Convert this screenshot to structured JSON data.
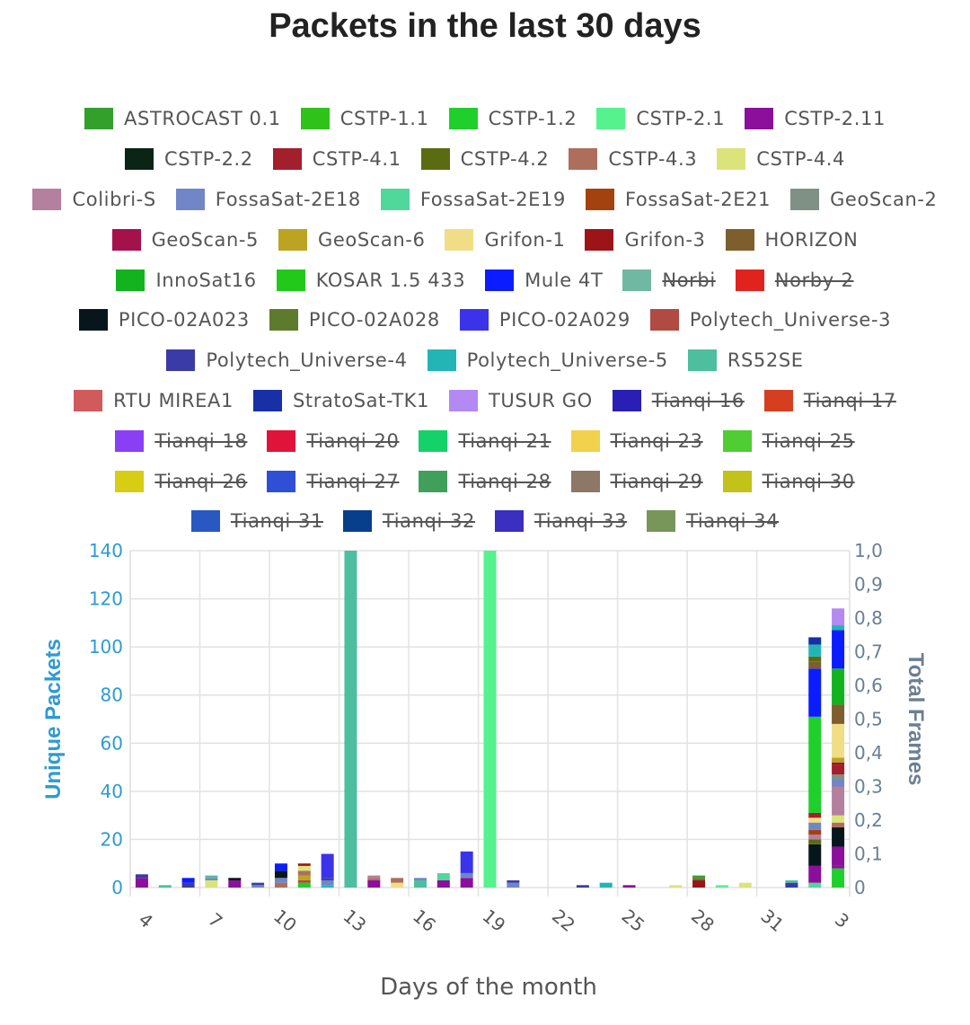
{
  "chart_data": {
    "type": "bar",
    "stacked": true,
    "title": "Packets in the last 30 days",
    "xlabel": "Days of the month",
    "ylabel": "Unique Packets",
    "y2label": "Total Frames",
    "ylim": [
      0,
      140
    ],
    "y2lim": [
      0,
      1.0
    ],
    "yticks": [
      "0",
      "20",
      "40",
      "60",
      "80",
      "100",
      "120",
      "140"
    ],
    "y2ticks": [
      "0",
      "0,1",
      "0,2",
      "0,3",
      "0,4",
      "0,5",
      "0,6",
      "0,7",
      "0,8",
      "0,9",
      "1,0"
    ],
    "categories": [
      "4",
      "5",
      "6",
      "7",
      "8",
      "9",
      "10",
      "11",
      "12",
      "13",
      "14",
      "15",
      "16",
      "17",
      "18",
      "19",
      "20",
      "21",
      "22",
      "23",
      "24",
      "25",
      "26",
      "27",
      "28",
      "29",
      "30",
      "31",
      "1",
      "2",
      "3"
    ],
    "xtick_labels": [
      "4",
      "7",
      "10",
      "13",
      "16",
      "19",
      "22",
      "25",
      "28",
      "31",
      "3"
    ],
    "grid": true,
    "legend_position": "top",
    "series_legend": [
      {
        "name": "ASTROCAST 0.1",
        "color": "#33a02c",
        "hidden": false
      },
      {
        "name": "CSTP-1.1",
        "color": "#2fc21b",
        "hidden": false
      },
      {
        "name": "CSTP-1.2",
        "color": "#1fcf2c",
        "hidden": false
      },
      {
        "name": "CSTP-2.1",
        "color": "#55f28e",
        "hidden": false
      },
      {
        "name": "CSTP-2.11",
        "color": "#8b0f9b",
        "hidden": false
      },
      {
        "name": "CSTP-2.2",
        "color": "#0a2416",
        "hidden": false
      },
      {
        "name": "CSTP-4.1",
        "color": "#a31f2c",
        "hidden": false
      },
      {
        "name": "CSTP-4.2",
        "color": "#5b6b12",
        "hidden": false
      },
      {
        "name": "CSTP-4.3",
        "color": "#ad6f5c",
        "hidden": false
      },
      {
        "name": "CSTP-4.4",
        "color": "#dbe47a",
        "hidden": false
      },
      {
        "name": "Colibri-S",
        "color": "#b57f9e",
        "hidden": false
      },
      {
        "name": "FossaSat-2E18",
        "color": "#7086c6",
        "hidden": false
      },
      {
        "name": "FossaSat-2E19",
        "color": "#4fd89a",
        "hidden": false
      },
      {
        "name": "FossaSat-2E21",
        "color": "#a4420f",
        "hidden": false
      },
      {
        "name": "GeoScan-2",
        "color": "#7f9085",
        "hidden": false
      },
      {
        "name": "GeoScan-5",
        "color": "#a5124b",
        "hidden": false
      },
      {
        "name": "GeoScan-6",
        "color": "#bca422",
        "hidden": false
      },
      {
        "name": "Grifon-1",
        "color": "#f1dd85",
        "hidden": false
      },
      {
        "name": "Grifon-3",
        "color": "#9c1418",
        "hidden": false
      },
      {
        "name": "HORIZON",
        "color": "#7d5e2c",
        "hidden": false
      },
      {
        "name": "InnoSat16",
        "color": "#12b31f",
        "hidden": false
      },
      {
        "name": "KOSAR 1.5 433",
        "color": "#22c91a",
        "hidden": false
      },
      {
        "name": "Mule 4T",
        "color": "#0b1dff",
        "hidden": false
      },
      {
        "name": "Norbi",
        "color": "#70b8a1",
        "hidden": true
      },
      {
        "name": "Norby-2",
        "color": "#e0231d",
        "hidden": true
      },
      {
        "name": "PICO-02A023",
        "color": "#06161b",
        "hidden": false
      },
      {
        "name": "PICO-02A028",
        "color": "#5e7a2c",
        "hidden": false
      },
      {
        "name": "PICO-02A029",
        "color": "#3b33ea",
        "hidden": false
      },
      {
        "name": "Polytech_Universe-3",
        "color": "#b04a42",
        "hidden": false
      },
      {
        "name": "Polytech_Universe-4",
        "color": "#3a3ba6",
        "hidden": false
      },
      {
        "name": "Polytech_Universe-5",
        "color": "#23b5b5",
        "hidden": false
      },
      {
        "name": "RS52SE",
        "color": "#4dbf9e",
        "hidden": false
      },
      {
        "name": "RTU MIREA1",
        "color": "#d05a5c",
        "hidden": false
      },
      {
        "name": "StratoSat-TK1",
        "color": "#1730a6",
        "hidden": false
      },
      {
        "name": "TUSUR GO",
        "color": "#b28af2",
        "hidden": false
      },
      {
        "name": "Tianqi-16",
        "color": "#2a1fb5",
        "hidden": true
      },
      {
        "name": "Tianqi-17",
        "color": "#d53f1f",
        "hidden": true
      },
      {
        "name": "Tianqi-18",
        "color": "#8a3ff5",
        "hidden": true
      },
      {
        "name": "Tianqi-20",
        "color": "#e0143a",
        "hidden": true
      },
      {
        "name": "Tianqi-21",
        "color": "#14d16a",
        "hidden": true
      },
      {
        "name": "Tianqi-23",
        "color": "#f2d14c",
        "hidden": true
      },
      {
        "name": "Tianqi-25",
        "color": "#4fcd33",
        "hidden": true
      },
      {
        "name": "Tianqi-26",
        "color": "#d6cd14",
        "hidden": true
      },
      {
        "name": "Tianqi-27",
        "color": "#2f4fd6",
        "hidden": true
      },
      {
        "name": "Tianqi-28",
        "color": "#40a05a",
        "hidden": true
      },
      {
        "name": "Tianqi-29",
        "color": "#8d7767",
        "hidden": true
      },
      {
        "name": "Tianqi-30",
        "color": "#c2c21a",
        "hidden": true
      },
      {
        "name": "Tianqi-31",
        "color": "#2a58c2",
        "hidden": true
      },
      {
        "name": "Tianqi-32",
        "color": "#083f8c",
        "hidden": true
      },
      {
        "name": "Tianqi-33",
        "color": "#3a2fbf",
        "hidden": true
      },
      {
        "name": "Tianqi-34",
        "color": "#78955a",
        "hidden": true
      }
    ],
    "bars": [
      {
        "day": "4",
        "axis": "left",
        "segments": [
          {
            "series": "CSTP-2.11",
            "value": 4
          },
          {
            "series": "Polytech_Universe-4",
            "value": 1.5
          }
        ]
      },
      {
        "day": "5",
        "axis": "left",
        "segments": [
          {
            "series": "RS52SE",
            "value": 1
          }
        ]
      },
      {
        "day": "6",
        "axis": "left",
        "segments": [
          {
            "series": "Polytech_Universe-4",
            "value": 2
          },
          {
            "series": "Mule 4T",
            "value": 2
          }
        ]
      },
      {
        "day": "7",
        "axis": "left",
        "segments": [
          {
            "series": "CSTP-4.4",
            "value": 3
          },
          {
            "series": "FossaSat-2E18",
            "value": 1
          },
          {
            "series": "RS52SE",
            "value": 1
          }
        ]
      },
      {
        "day": "8",
        "axis": "left",
        "segments": [
          {
            "series": "CSTP-2.11",
            "value": 3
          },
          {
            "series": "PICO-02A023",
            "value": 1
          }
        ]
      },
      {
        "day": "9",
        "axis": "left",
        "segments": [
          {
            "series": "FossaSat-2E18",
            "value": 1
          },
          {
            "series": "Polytech_Universe-4",
            "value": 1
          }
        ]
      },
      {
        "day": "10",
        "axis": "left",
        "segments": [
          {
            "series": "CSTP-4.3",
            "value": 2
          },
          {
            "series": "FossaSat-2E18",
            "value": 2
          },
          {
            "series": "PICO-02A023",
            "value": 3
          },
          {
            "series": "Mule 4T",
            "value": 3
          }
        ]
      },
      {
        "day": "11",
        "axis": "left",
        "segments": [
          {
            "series": "CSTP-1.2",
            "value": 2
          },
          {
            "series": "Polytech_Universe-3",
            "value": 1
          },
          {
            "series": "GeoScan-6",
            "value": 2
          },
          {
            "series": "CSTP-4.3",
            "value": 2
          },
          {
            "series": "CSTP-4.4",
            "value": 2
          },
          {
            "series": "Grifon-3",
            "value": 1
          }
        ]
      },
      {
        "day": "12",
        "axis": "left",
        "segments": [
          {
            "series": "Polytech_Universe-5",
            "value": 1
          },
          {
            "series": "FossaSat-2E18",
            "value": 2
          },
          {
            "series": "Polytech_Universe-4",
            "value": 1
          },
          {
            "series": "PICO-02A029",
            "value": 10
          }
        ]
      },
      {
        "day": "13",
        "axis": "left",
        "segments": [
          {
            "series": "GeoScan-2",
            "value": 2
          }
        ]
      },
      {
        "day": "14",
        "axis": "left",
        "segments": [
          {
            "series": "CSTP-2.11",
            "value": 3
          },
          {
            "series": "CSTP-4.3",
            "value": 1
          },
          {
            "series": "Colibri-S",
            "value": 1
          }
        ]
      },
      {
        "day": "15",
        "axis": "left",
        "segments": [
          {
            "series": "Grifon-1",
            "value": 2
          },
          {
            "series": "CSTP-4.3",
            "value": 2
          }
        ]
      },
      {
        "day": "16",
        "axis": "left",
        "segments": [
          {
            "series": "RS52SE",
            "value": 3
          },
          {
            "series": "FossaSat-2E18",
            "value": 1
          }
        ]
      },
      {
        "day": "17",
        "axis": "left",
        "segments": [
          {
            "series": "CSTP-2.11",
            "value": 3
          },
          {
            "series": "FossaSat-2E19",
            "value": 3
          }
        ]
      },
      {
        "day": "18",
        "axis": "left",
        "segments": [
          {
            "series": "CSTP-2.11",
            "value": 4
          },
          {
            "series": "FossaSat-2E18",
            "value": 2
          },
          {
            "series": "PICO-02A029",
            "value": 9
          }
        ]
      },
      {
        "day": "19",
        "axis": "left",
        "segments": [
          {
            "series": "CSTP-2.11",
            "value": 4
          },
          {
            "series": "Colibri-S",
            "value": 2
          },
          {
            "series": "GeoScan-6",
            "value": 2
          },
          {
            "series": "HORIZON",
            "value": 1
          }
        ]
      },
      {
        "day": "20",
        "axis": "left",
        "segments": [
          {
            "series": "FossaSat-2E18",
            "value": 2
          },
          {
            "series": "Polytech_Universe-4",
            "value": 1
          }
        ]
      },
      {
        "day": "23",
        "axis": "left",
        "segments": [
          {
            "series": "Polytech_Universe-4",
            "value": 1
          }
        ]
      },
      {
        "day": "24",
        "axis": "left",
        "segments": [
          {
            "series": "Polytech_Universe-5",
            "value": 2
          }
        ]
      },
      {
        "day": "25",
        "axis": "left",
        "segments": [
          {
            "series": "CSTP-2.11",
            "value": 1
          }
        ]
      },
      {
        "day": "27",
        "axis": "left",
        "segments": [
          {
            "series": "CSTP-4.4",
            "value": 1
          }
        ]
      },
      {
        "day": "28",
        "axis": "left",
        "segments": [
          {
            "series": "Grifon-3",
            "value": 3
          },
          {
            "series": "PICO-02A028",
            "value": 1
          },
          {
            "series": "ASTROCAST 0.1",
            "value": 1
          }
        ]
      },
      {
        "day": "29",
        "axis": "left",
        "segments": [
          {
            "series": "CSTP-2.1",
            "value": 1
          }
        ]
      },
      {
        "day": "30",
        "axis": "left",
        "segments": [
          {
            "series": "CSTP-4.4",
            "value": 2
          }
        ]
      },
      {
        "day": "1",
        "axis": "left",
        "segments": [
          {
            "series": "Polytech_Universe-4",
            "value": 2
          },
          {
            "series": "RS52SE",
            "value": 1
          }
        ]
      },
      {
        "day": "2",
        "axis": "left",
        "segments": [
          {
            "series": "FossaSat-2E19",
            "value": 2
          },
          {
            "series": "CSTP-2.11",
            "value": 7
          },
          {
            "series": "PICO-02A023",
            "value": 9
          },
          {
            "series": "CSTP-4.2",
            "value": 2
          },
          {
            "series": "Colibri-S",
            "value": 2
          },
          {
            "series": "FossaSat-2E21",
            "value": 2
          },
          {
            "series": "FossaSat-2E18",
            "value": 3
          },
          {
            "series": "Grifon-1",
            "value": 2
          },
          {
            "series": "CSTP-4.1",
            "value": 2
          },
          {
            "series": "CSTP-1.2",
            "value": 40
          },
          {
            "series": "Mule 4T",
            "value": 20
          },
          {
            "series": "HORIZON",
            "value": 3
          },
          {
            "series": "CSTP-4.2",
            "value": 2
          },
          {
            "series": "Polytech_Universe-5",
            "value": 5
          },
          {
            "series": "StratoSat-TK1",
            "value": 3
          }
        ]
      },
      {
        "day": "3",
        "axis": "left",
        "segments": [
          {
            "series": "CSTP-1.2",
            "value": 8
          },
          {
            "series": "CSTP-2.11",
            "value": 1
          },
          {
            "series": "CSTP-2.11",
            "value": 8
          },
          {
            "series": "PICO-02A023",
            "value": 8
          },
          {
            "series": "CSTP-4.3",
            "value": 2
          },
          {
            "series": "CSTP-4.4",
            "value": 3
          },
          {
            "series": "Colibri-S",
            "value": 12
          },
          {
            "series": "FossaSat-2E18",
            "value": 3
          },
          {
            "series": "GeoScan-2",
            "value": 2
          },
          {
            "series": "CSTP-4.1",
            "value": 4
          },
          {
            "series": "Grifon-3",
            "value": 1
          },
          {
            "series": "GeoScan-6",
            "value": 2
          },
          {
            "series": "Grifon-1",
            "value": 14
          },
          {
            "series": "HORIZON",
            "value": 8
          },
          {
            "series": "InnoSat16",
            "value": 15
          },
          {
            "series": "Mule 4T",
            "value": 16
          },
          {
            "series": "Polytech_Universe-5",
            "value": 2
          },
          {
            "series": "TUSUR GO",
            "value": 7
          }
        ]
      },
      {
        "day": "13",
        "axis": "right",
        "segments": [
          {
            "series": "RS52SE",
            "value": 1.0
          }
        ]
      },
      {
        "day": "19",
        "axis": "right",
        "segments": [
          {
            "series": "CSTP-2.1",
            "value": 1.0
          }
        ]
      }
    ]
  }
}
